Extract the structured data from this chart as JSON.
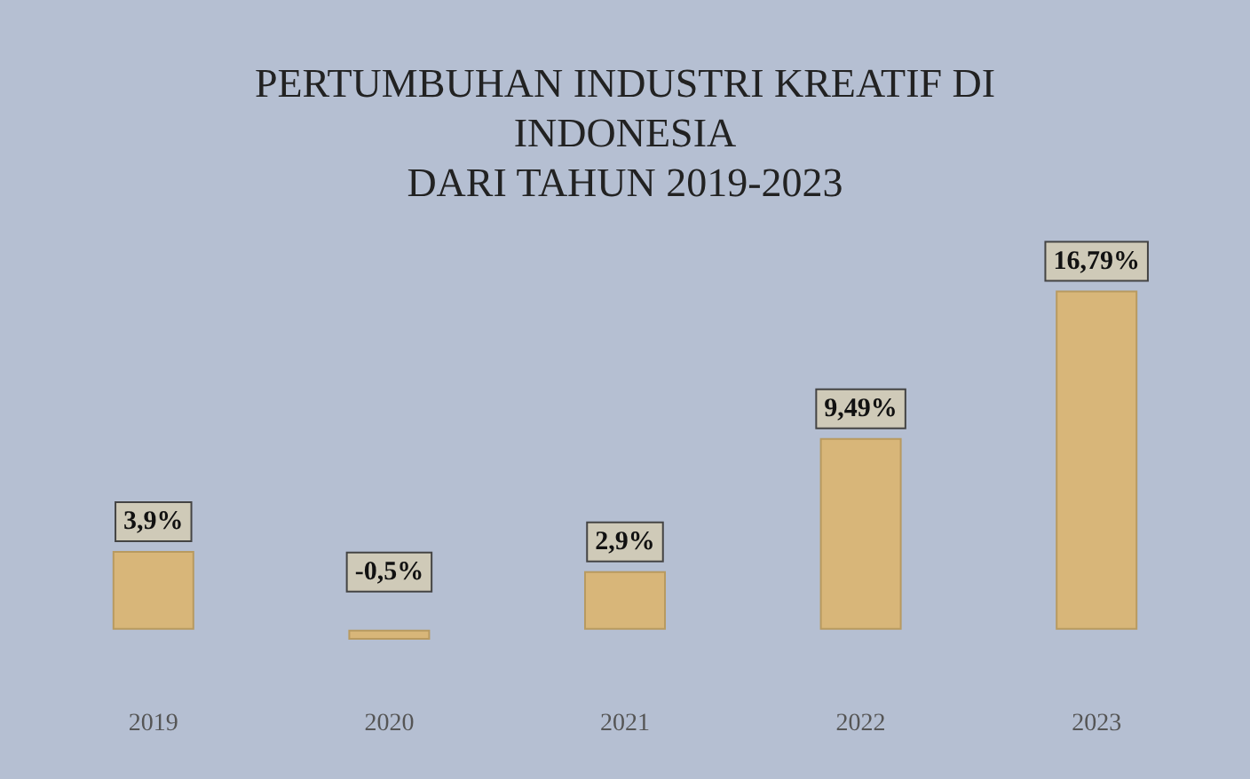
{
  "chart_data": {
    "type": "bar",
    "title": "PERTUMBUHAN INDUSTRI KREATIF DI\nINDONESIA\nDARI TAHUN 2019-2023",
    "categories": [
      "2019",
      "2020",
      "2021",
      "2022",
      "2023"
    ],
    "values": [
      3.9,
      -0.5,
      2.9,
      9.49,
      16.79
    ],
    "value_labels": [
      "3,9%",
      "-0,5%",
      "2,9%",
      "9,49%",
      "16,79%"
    ],
    "color": "#d8b679"
  }
}
